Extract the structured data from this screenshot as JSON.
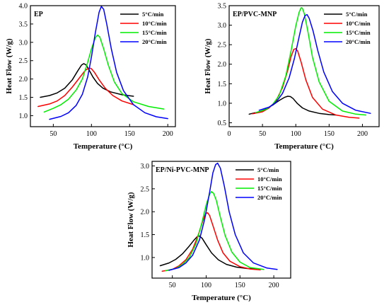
{
  "chart_data": [
    {
      "type": "line",
      "title": "EP",
      "xlabel": "Temperature (°C)",
      "ylabel": "Heat Flow (W/g)",
      "xlim": [
        20,
        210
      ],
      "ylim": [
        0.7,
        4.0
      ],
      "xticks": [
        50,
        100,
        150,
        200
      ],
      "yticks": [
        1.0,
        1.5,
        2.0,
        2.5,
        3.0,
        3.5,
        4.0
      ],
      "xtick_labels": [
        "50",
        "100",
        "150",
        "200"
      ],
      "ytick_labels": [
        "1.0",
        "1.5",
        "2.0",
        "2.5",
        "3.0",
        "3.5",
        "4.0"
      ],
      "legend_position": "top-right",
      "series": [
        {
          "name": "5°C/min",
          "color": "#000000",
          "x": [
            33,
            45,
            55,
            65,
            75,
            82,
            87,
            90,
            93,
            97,
            102,
            108,
            115,
            125,
            140,
            155
          ],
          "y": [
            1.5,
            1.55,
            1.62,
            1.75,
            1.98,
            2.22,
            2.38,
            2.42,
            2.38,
            2.24,
            2.05,
            1.88,
            1.75,
            1.65,
            1.57,
            1.53
          ]
        },
        {
          "name": "10°C/min",
          "color": "#ff0000",
          "x": [
            30,
            45,
            55,
            65,
            75,
            85,
            92,
            97,
            100,
            104,
            110,
            118,
            128,
            140,
            155
          ],
          "y": [
            1.25,
            1.32,
            1.4,
            1.55,
            1.78,
            2.05,
            2.24,
            2.3,
            2.28,
            2.18,
            1.98,
            1.75,
            1.55,
            1.4,
            1.3
          ]
        },
        {
          "name": "15°C/min",
          "color": "#00ee00",
          "x": [
            38,
            50,
            60,
            70,
            80,
            88,
            95,
            100,
            105,
            108,
            111,
            116,
            122,
            130,
            140,
            155,
            175,
            195
          ],
          "y": [
            1.1,
            1.2,
            1.3,
            1.45,
            1.7,
            2.0,
            2.45,
            2.82,
            3.12,
            3.2,
            3.14,
            2.82,
            2.38,
            1.92,
            1.6,
            1.38,
            1.25,
            1.18
          ]
        },
        {
          "name": "20°C/min",
          "color": "#0000ff",
          "x": [
            45,
            60,
            70,
            80,
            88,
            95,
            100,
            105,
            110,
            113,
            116,
            120,
            126,
            133,
            142,
            155,
            170,
            185,
            200
          ],
          "y": [
            0.9,
            0.98,
            1.08,
            1.28,
            1.58,
            2.05,
            2.6,
            3.25,
            3.82,
            3.98,
            3.9,
            3.5,
            2.82,
            2.18,
            1.68,
            1.3,
            1.08,
            0.97,
            0.92
          ]
        }
      ]
    },
    {
      "type": "line",
      "title": "EP/PVC-MNP",
      "xlabel": "Temperature (°C)",
      "ylabel": "Heat Flow (W/g)",
      "xlim": [
        0,
        225
      ],
      "ylim": [
        0.4,
        3.5
      ],
      "xticks": [
        0,
        50,
        100,
        150,
        200
      ],
      "yticks": [
        0.5,
        1.0,
        1.5,
        2.0,
        2.5,
        3.0,
        3.5
      ],
      "xtick_labels": [
        "0",
        "50",
        "100",
        "150",
        "200"
      ],
      "ytick_labels": [
        "0.5",
        "1.0",
        "1.5",
        "2.0",
        "2.5",
        "3.0",
        "3.5"
      ],
      "legend_position": "top-right",
      "series": [
        {
          "name": "5°C/min",
          "color": "#000000",
          "x": [
            30,
            45,
            55,
            65,
            75,
            83,
            88,
            92,
            96,
            102,
            110,
            120,
            135,
            150,
            160
          ],
          "y": [
            0.72,
            0.78,
            0.85,
            0.95,
            1.07,
            1.15,
            1.18,
            1.17,
            1.12,
            1.0,
            0.88,
            0.8,
            0.74,
            0.71,
            0.7
          ]
        },
        {
          "name": "10°C/min",
          "color": "#ff0000",
          "x": [
            35,
            50,
            60,
            70,
            80,
            88,
            93,
            97,
            100,
            103,
            108,
            115,
            125,
            140,
            160,
            180,
            195
          ],
          "y": [
            0.73,
            0.78,
            0.88,
            1.05,
            1.4,
            1.85,
            2.2,
            2.38,
            2.4,
            2.33,
            2.05,
            1.6,
            1.15,
            0.85,
            0.7,
            0.64,
            0.62
          ]
        },
        {
          "name": "15°C/min",
          "color": "#00ee00",
          "x": [
            40,
            55,
            65,
            75,
            85,
            93,
            100,
            105,
            108,
            110,
            113,
            118,
            125,
            135,
            150,
            170,
            190,
            205
          ],
          "y": [
            0.76,
            0.84,
            0.96,
            1.2,
            1.7,
            2.35,
            2.98,
            3.33,
            3.45,
            3.43,
            3.28,
            2.85,
            2.18,
            1.55,
            1.05,
            0.8,
            0.72,
            0.7
          ]
        },
        {
          "name": "20°C/min",
          "color": "#0000ff",
          "x": [
            45,
            60,
            70,
            80,
            90,
            98,
            105,
            110,
            114,
            117,
            120,
            126,
            133,
            142,
            155,
            170,
            190,
            212
          ],
          "y": [
            0.82,
            0.9,
            1.02,
            1.25,
            1.65,
            2.15,
            2.7,
            3.08,
            3.25,
            3.27,
            3.18,
            2.85,
            2.35,
            1.8,
            1.3,
            1.0,
            0.82,
            0.74
          ]
        }
      ]
    },
    {
      "type": "line",
      "title": "EP/Ni-PVC-MNP",
      "xlabel": "Temperature (°C)",
      "ylabel": "Heat Flow (W/g)",
      "xlim": [
        20,
        225
      ],
      "ylim": [
        0.55,
        3.1
      ],
      "xticks": [
        50,
        100,
        150,
        200
      ],
      "yticks": [
        1.0,
        1.5,
        2.0,
        2.5,
        3.0
      ],
      "xtick_labels": [
        "50",
        "100",
        "150",
        "200"
      ],
      "ytick_labels": [
        "1.0",
        "1.5",
        "2.0",
        "2.5",
        "3.0"
      ],
      "legend_position": "top-right",
      "series": [
        {
          "name": "5°C/min",
          "color": "#000000",
          "x": [
            32,
            45,
            55,
            65,
            75,
            82,
            87,
            90,
            94,
            100,
            108,
            118,
            130,
            145,
            160,
            175
          ],
          "y": [
            0.82,
            0.88,
            0.96,
            1.08,
            1.25,
            1.38,
            1.46,
            1.47,
            1.42,
            1.28,
            1.1,
            0.95,
            0.85,
            0.79,
            0.76,
            0.75
          ]
        },
        {
          "name": "10°C/min",
          "color": "#ff0000",
          "x": [
            35,
            50,
            60,
            70,
            80,
            88,
            95,
            99,
            102,
            105,
            110,
            117,
            125,
            135,
            150,
            165,
            180
          ],
          "y": [
            0.7,
            0.74,
            0.82,
            0.95,
            1.18,
            1.48,
            1.8,
            1.95,
            1.98,
            1.92,
            1.7,
            1.38,
            1.1,
            0.92,
            0.8,
            0.75,
            0.73
          ]
        },
        {
          "name": "15°C/min",
          "color": "#00ee00",
          "x": [
            40,
            55,
            65,
            75,
            85,
            93,
            100,
            105,
            108,
            111,
            115,
            121,
            128,
            138,
            150,
            165,
            185
          ],
          "y": [
            0.71,
            0.76,
            0.85,
            1.0,
            1.3,
            1.72,
            2.15,
            2.38,
            2.44,
            2.4,
            2.25,
            1.88,
            1.48,
            1.12,
            0.9,
            0.78,
            0.74
          ]
        },
        {
          "name": "20°C/min",
          "color": "#0000ff",
          "x": [
            45,
            60,
            70,
            80,
            90,
            98,
            105,
            110,
            114,
            117,
            121,
            127,
            134,
            143,
            155,
            170,
            190,
            205
          ],
          "y": [
            0.72,
            0.78,
            0.88,
            1.05,
            1.38,
            1.85,
            2.42,
            2.85,
            3.03,
            3.06,
            2.95,
            2.55,
            2.0,
            1.5,
            1.1,
            0.88,
            0.77,
            0.74
          ]
        }
      ]
    }
  ]
}
